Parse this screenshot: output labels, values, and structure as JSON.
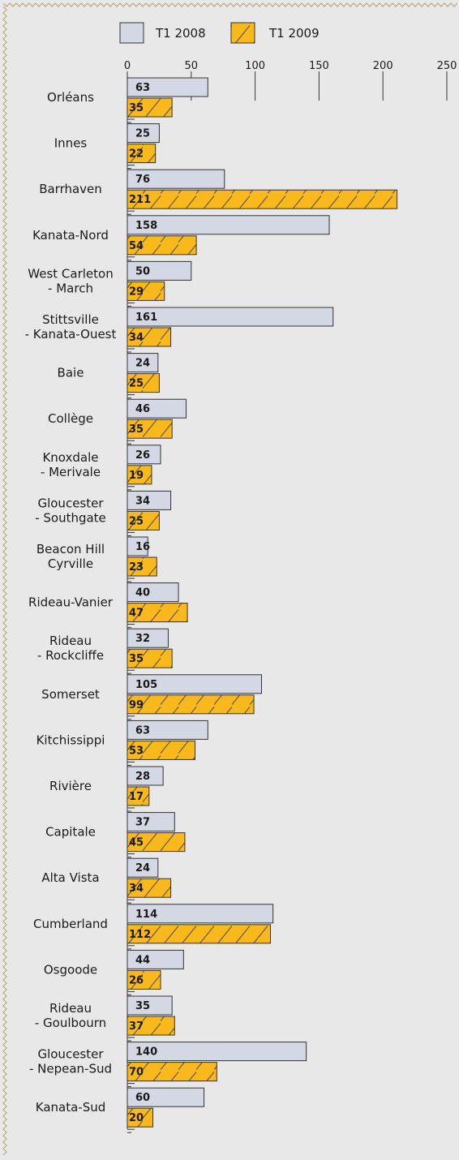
{
  "colors": {
    "background": "#e8e8e8",
    "series_2008": "#d4d8e4",
    "series_2009": "#f9b91c",
    "stroke": "#333333",
    "border": "#b5a268"
  },
  "chart_data": {
    "type": "bar",
    "orientation": "horizontal",
    "title": "",
    "xlabel": "",
    "ylabel": "",
    "xlim": [
      0,
      250
    ],
    "ticks": [
      0,
      50,
      100,
      150,
      200,
      250
    ],
    "grid": false,
    "legend_position": "top",
    "categories": [
      [
        "Orléans"
      ],
      [
        "Innes"
      ],
      [
        "Barrhaven"
      ],
      [
        "Kanata-Nord"
      ],
      [
        "West Carleton",
        "- March"
      ],
      [
        "Stittsville",
        "- Kanata-Ouest"
      ],
      [
        "Baie"
      ],
      [
        "Collège"
      ],
      [
        "Knoxdale",
        "- Merivale"
      ],
      [
        "Gloucester",
        "- Southgate"
      ],
      [
        "Beacon Hill",
        "Cyrville"
      ],
      [
        "Rideau-Vanier"
      ],
      [
        "Rideau",
        "- Rockcliffe"
      ],
      [
        "Somerset"
      ],
      [
        "Kitchissippi"
      ],
      [
        "Rivière"
      ],
      [
        "Capitale"
      ],
      [
        "Alta Vista"
      ],
      [
        "Cumberland"
      ],
      [
        "Osgoode"
      ],
      [
        "Rideau",
        "- Goulbourn"
      ],
      [
        "Gloucester",
        "- Nepean-Sud"
      ],
      [
        "Kanata-Sud"
      ]
    ],
    "series": [
      {
        "name": "T1 2008",
        "values": [
          63,
          25,
          76,
          158,
          50,
          161,
          24,
          46,
          26,
          34,
          16,
          40,
          32,
          105,
          63,
          28,
          37,
          24,
          114,
          44,
          35,
          140,
          60
        ]
      },
      {
        "name": "T1 2009",
        "values": [
          35,
          22,
          211,
          54,
          29,
          34,
          25,
          35,
          19,
          25,
          23,
          47,
          35,
          99,
          53,
          17,
          45,
          34,
          112,
          26,
          37,
          70,
          20
        ]
      }
    ]
  }
}
